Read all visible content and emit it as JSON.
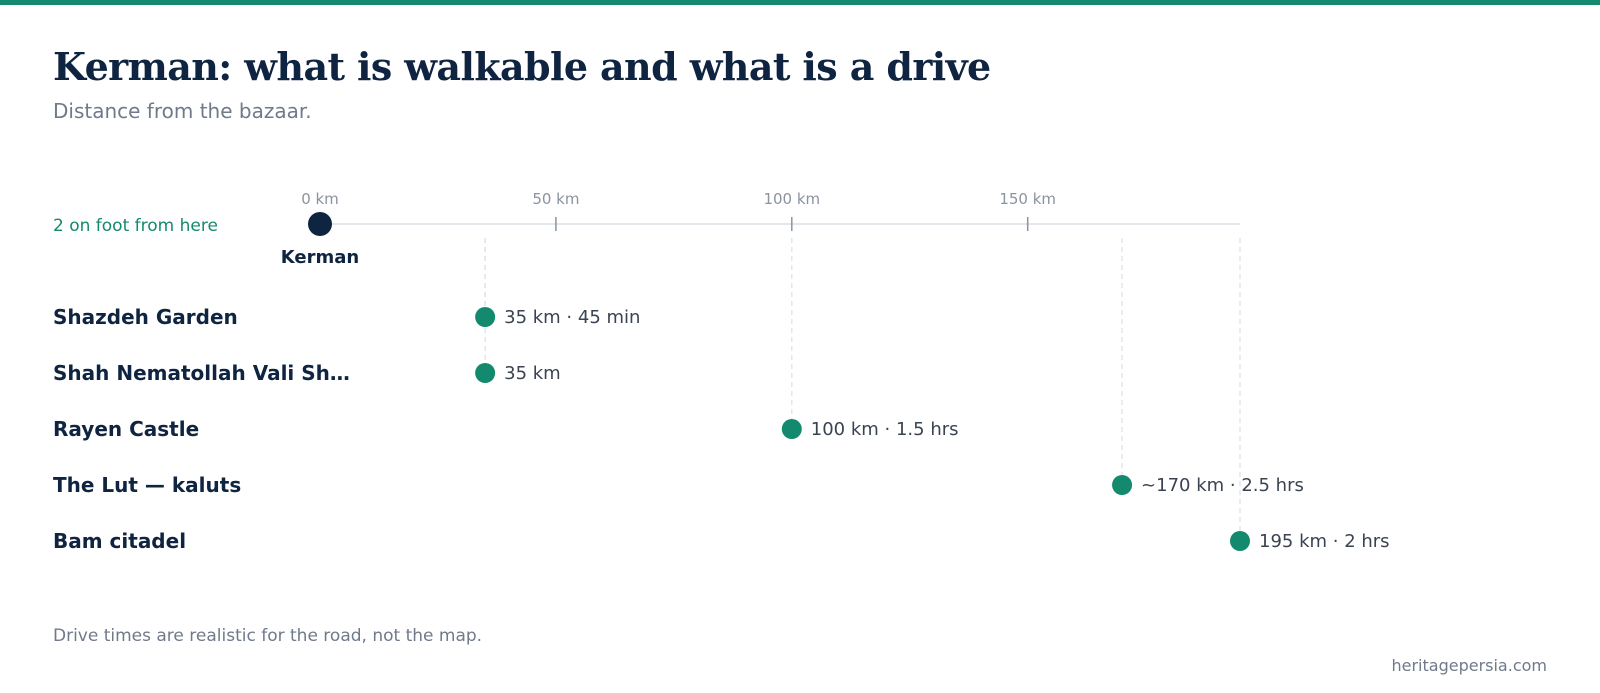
{
  "header": {
    "title": "Kerman: what is walkable and what is a drive",
    "subtitle": "Distance from the bazaar."
  },
  "chart_data": {
    "type": "scatter",
    "x_unit": "km",
    "xlim": [
      0,
      195
    ],
    "ticks": [
      {
        "value": 0,
        "label": "0 km"
      },
      {
        "value": 50,
        "label": "50 km"
      },
      {
        "value": 100,
        "label": "100 km"
      },
      {
        "value": 150,
        "label": "150 km"
      }
    ],
    "origin": {
      "name": "Kerman",
      "value": 0
    },
    "walk_note": "2 on foot from here",
    "destinations": [
      {
        "name": "Shazdeh Garden",
        "km": 35,
        "label": "35 km · 45 min"
      },
      {
        "name": "Shah Nematollah Vali Sh…",
        "km": 35,
        "label": "35 km"
      },
      {
        "name": "Rayen Castle",
        "km": 100,
        "label": "100 km · 1.5 hrs"
      },
      {
        "name": "The Lut — kaluts",
        "km": 170,
        "label": "~170 km · 2.5 hrs"
      },
      {
        "name": "Bam citadel",
        "km": 195,
        "label": "195 km · 2 hrs"
      }
    ],
    "colors": {
      "origin": "#0f2440",
      "destination": "#138a6e",
      "axis": "#e3e6ea",
      "tick": "#8a93a0",
      "guide": "#e3e6ea",
      "walk_note": "#138a6e",
      "row_label": "#0f2440",
      "value_label": "#3a4352"
    }
  },
  "footer": {
    "note": "Drive times are realistic for the road, not the map.",
    "source": "heritagepersia.com"
  }
}
